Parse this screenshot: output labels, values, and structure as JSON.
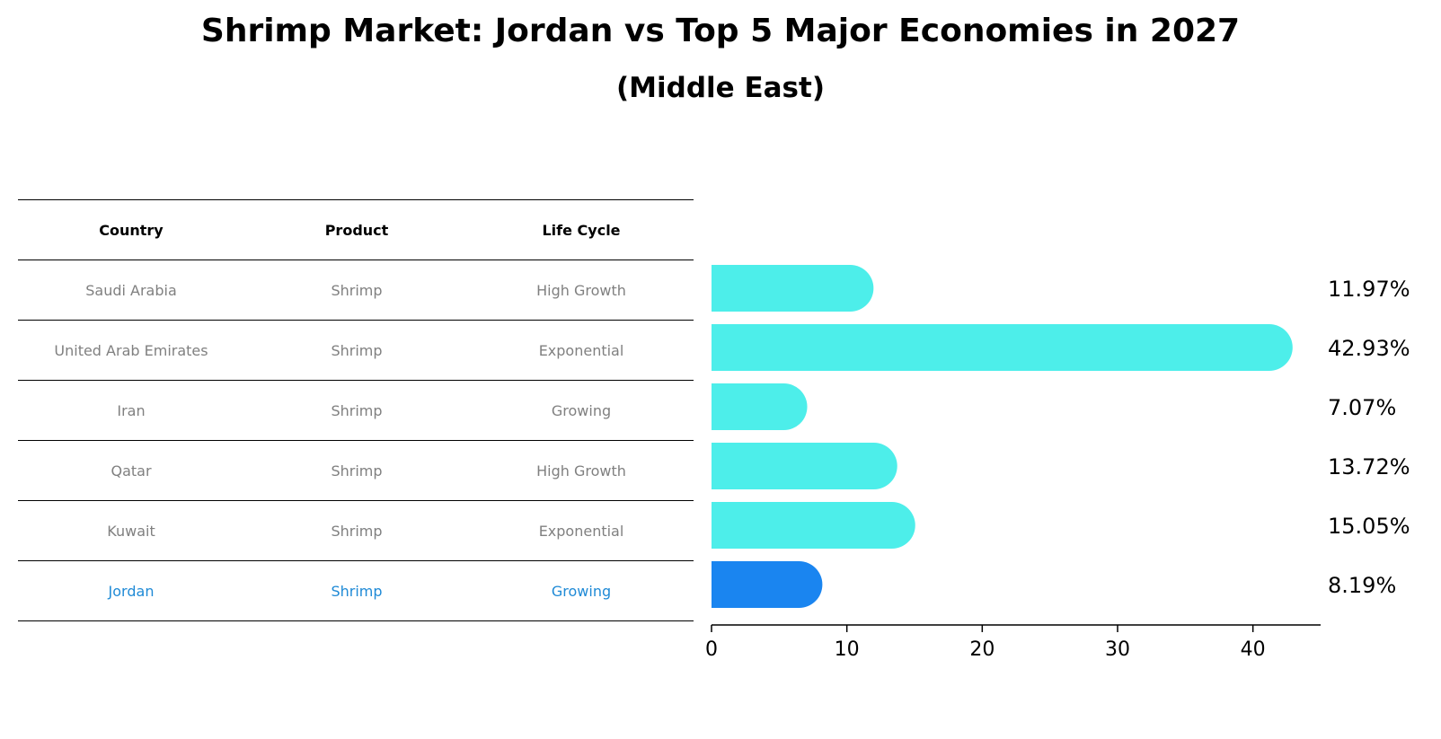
{
  "title": "Shrimp Market: Jordan vs Top 5 Major Economies in 2027",
  "subtitle": "(Middle East)",
  "table": {
    "headers": [
      "Country",
      "Product",
      "Life Cycle"
    ],
    "rows": [
      {
        "country": "Saudi Arabia",
        "product": "Shrimp",
        "life_cycle": "High Growth"
      },
      {
        "country": "United Arab Emirates",
        "product": "Shrimp",
        "life_cycle": "Exponential"
      },
      {
        "country": "Iran",
        "product": "Shrimp",
        "life_cycle": "Growing"
      },
      {
        "country": "Qatar",
        "product": "Shrimp",
        "life_cycle": "High Growth"
      },
      {
        "country": "Kuwait",
        "product": "Shrimp",
        "life_cycle": "Exponential"
      },
      {
        "country": "Jordan",
        "product": "Shrimp",
        "life_cycle": "Growing"
      }
    ]
  },
  "colors": {
    "bar": "#4deeea",
    "highlight_bar": "#1a85f0",
    "highlight_text": "#1f8ad6",
    "muted_text": "#808080"
  },
  "chart_data": {
    "type": "bar",
    "orientation": "horizontal",
    "categories": [
      "Saudi Arabia",
      "United Arab Emirates",
      "Iran",
      "Qatar",
      "Kuwait",
      "Jordan"
    ],
    "values": [
      11.97,
      42.93,
      7.07,
      13.72,
      15.05,
      8.19
    ],
    "value_labels": [
      "11.97%",
      "42.93%",
      "7.07%",
      "13.72%",
      "15.05%",
      "8.19%"
    ],
    "highlight": "Jordan",
    "xlim": [
      0,
      45
    ],
    "xticks": [
      0,
      10,
      20,
      30,
      40
    ],
    "grid": false
  }
}
